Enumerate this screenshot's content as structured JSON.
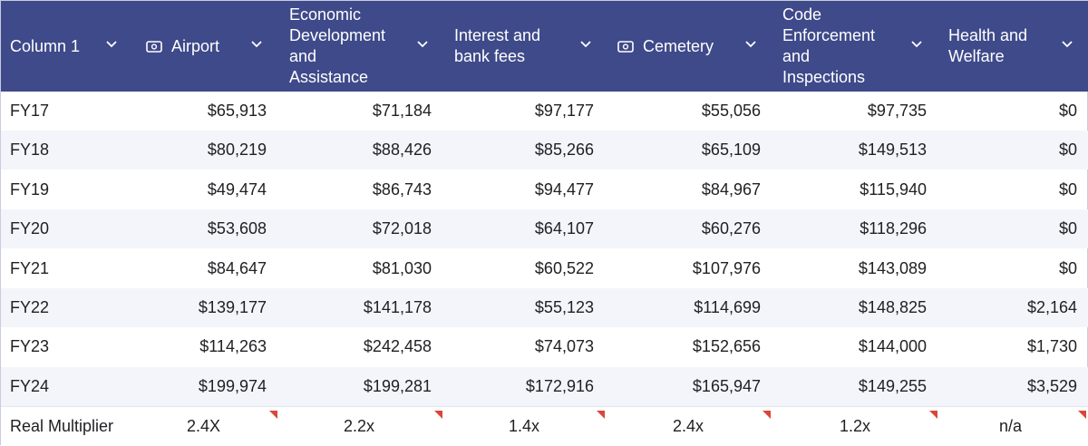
{
  "colors": {
    "header_bg": "#3f4a8a",
    "flag": "#d9463a"
  },
  "columns": [
    {
      "lines": [
        "Column 1"
      ],
      "icon": null
    },
    {
      "lines": [
        "Airport"
      ],
      "icon": "currency-icon"
    },
    {
      "lines": [
        "Economic",
        "Development",
        "and",
        "Assistance"
      ],
      "icon": null
    },
    {
      "lines": [
        "Interest and",
        "bank fees"
      ],
      "icon": null
    },
    {
      "lines": [
        "Cemetery"
      ],
      "icon": "currency-icon"
    },
    {
      "lines": [
        "Code",
        "Enforcement",
        "and",
        "Inspections"
      ],
      "icon": null
    },
    {
      "lines": [
        "Health and",
        "Welfare"
      ],
      "icon": null
    }
  ],
  "rows": [
    {
      "label": "FY17",
      "values": [
        "$65,913",
        "$71,184",
        "$97,177",
        "$55,056",
        "$97,735",
        "$0"
      ]
    },
    {
      "label": "FY18",
      "values": [
        "$80,219",
        "$88,426",
        "$85,266",
        "$65,109",
        "$149,513",
        "$0"
      ]
    },
    {
      "label": "FY19",
      "values": [
        "$49,474",
        "$86,743",
        "$94,477",
        "$84,967",
        "$115,940",
        "$0"
      ]
    },
    {
      "label": "FY20",
      "values": [
        "$53,608",
        "$72,018",
        "$64,107",
        "$60,276",
        "$118,296",
        "$0"
      ]
    },
    {
      "label": "FY21",
      "values": [
        "$84,647",
        "$81,030",
        "$60,522",
        "$107,976",
        "$143,089",
        "$0"
      ]
    },
    {
      "label": "FY22",
      "values": [
        "$139,177",
        "$141,178",
        "$55,123",
        "$114,699",
        "$148,825",
        "$2,164"
      ]
    },
    {
      "label": "FY23",
      "values": [
        "$114,263",
        "$242,458",
        "$74,073",
        "$152,656",
        "$144,000",
        "$1,730"
      ]
    },
    {
      "label": "FY24",
      "values": [
        "$199,974",
        "$199,281",
        "$172,916",
        "$165,947",
        "$149,255",
        "$3,529"
      ]
    }
  ],
  "multiplier": {
    "label": "Real Multiplier",
    "values": [
      "2.4X",
      "2.2x",
      "1.4x",
      "2.4x",
      "1.2x",
      "n/a"
    ]
  }
}
